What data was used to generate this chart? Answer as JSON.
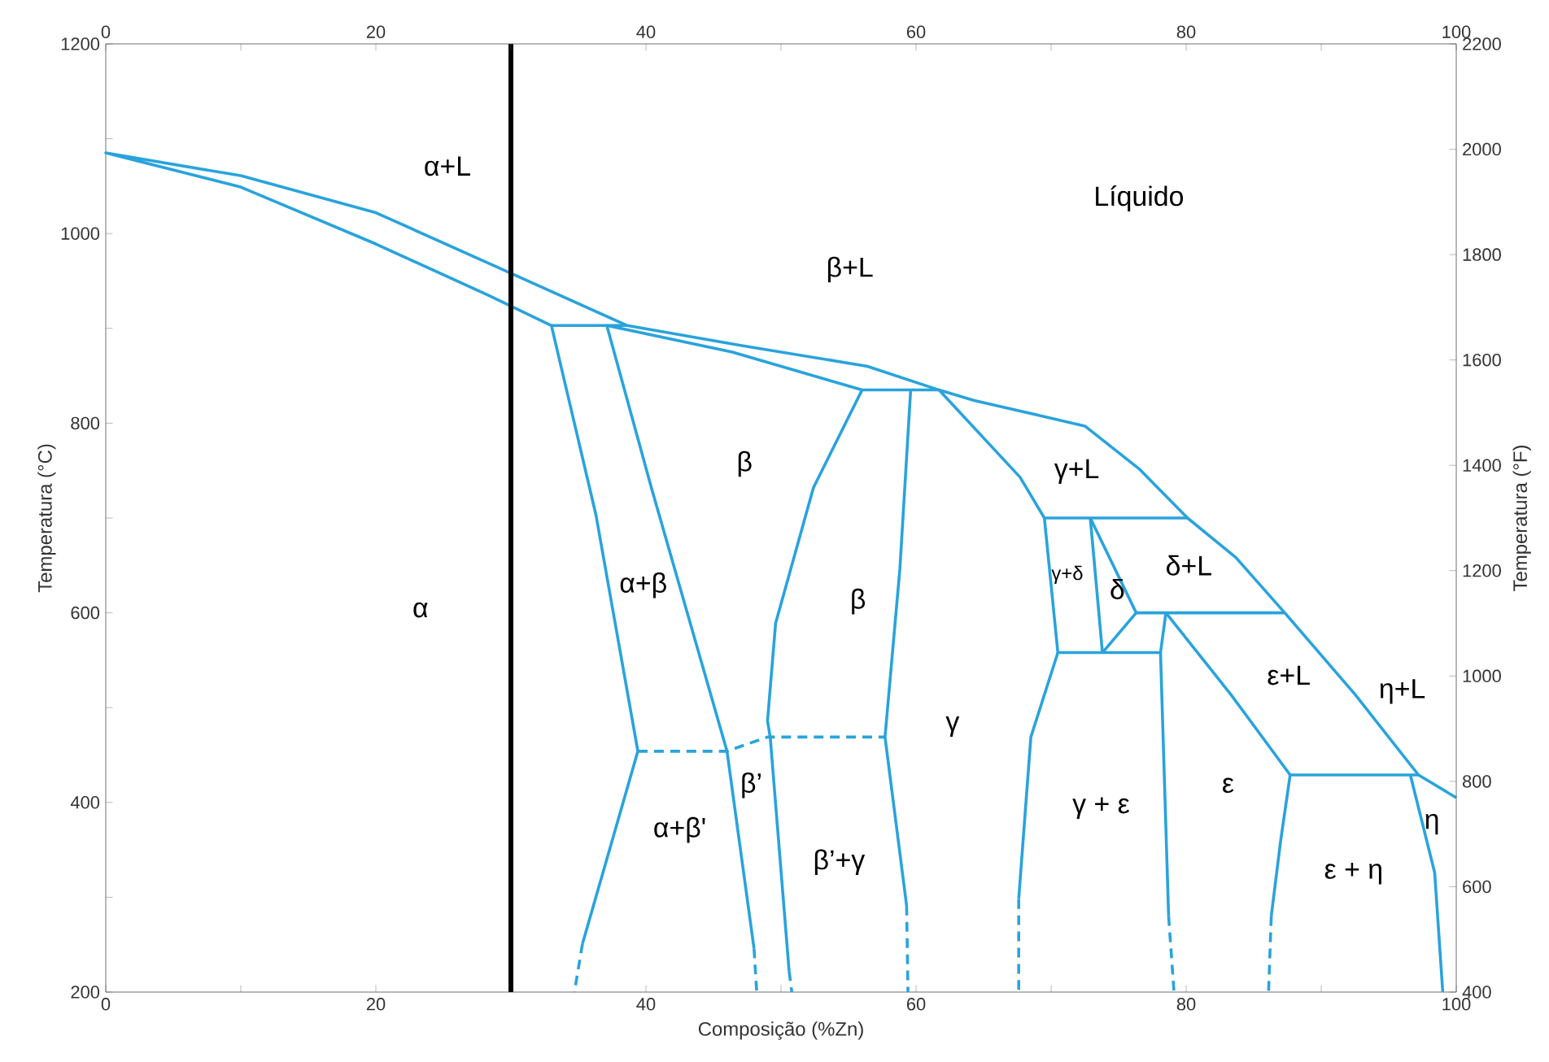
{
  "chart_data": {
    "type": "line",
    "xlabel": "Composição (%Zn)",
    "ylabel": "Temperatura (°C)",
    "y2label": "Temperatura (°F)",
    "xlim": [
      0,
      100
    ],
    "ylim": [
      200,
      1200
    ],
    "x2lim": [
      0,
      100
    ],
    "y2lim": [
      400,
      2200
    ],
    "xticks": [
      0,
      {
        "value": 10,
        "label": null
      },
      20,
      {
        "value": 30,
        "label": null
      },
      40,
      {
        "value": 50,
        "label": null
      },
      60,
      {
        "value": 70,
        "label": null
      },
      80,
      {
        "value": 90,
        "label": null
      },
      100
    ],
    "x2ticks": [
      0,
      {
        "value": 10,
        "label": null
      },
      20,
      {
        "value": 30,
        "label": null
      },
      40,
      {
        "value": 50,
        "label": null
      },
      60,
      {
        "value": 70,
        "label": null
      },
      80,
      {
        "value": 90,
        "label": null
      },
      100
    ],
    "yticks": [
      200,
      {
        "value": 300,
        "label": null
      },
      400,
      {
        "value": 500,
        "label": null
      },
      600,
      {
        "value": 700,
        "label": null
      },
      800,
      {
        "value": 900,
        "label": null
      },
      1000,
      {
        "value": 1100,
        "label": null
      },
      1200
    ],
    "y2ticks": [
      400,
      600,
      800,
      1000,
      1200,
      1400,
      1600,
      1800,
      2000,
      2200
    ],
    "grid": false,
    "marker": "none",
    "series": [
      {
        "color": "#29a3dc",
        "line_style": "solid",
        "x": [
          33.0,
          28.3,
          20,
          10,
          0,
          10,
          20,
          28.3,
          38.6,
          47,
          56.4,
          61.7,
          64.3,
          72.5,
          76.5,
          80.1,
          83.7,
          87.3,
          92.5,
          97.2,
          100
        ],
        "values": [
          903,
          935,
          989,
          1049,
          1085,
          1061,
          1022,
          969,
          903,
          882,
          860,
          835,
          824,
          797,
          752,
          700,
          658,
          600,
          514,
          429,
          405
        ]
      },
      {
        "color": "#29a3dc",
        "line_style": "solid",
        "x": [
          37.1,
          46.4,
          56.0,
          61.7,
          67.7,
          69.5,
          80.1
        ],
        "values": [
          903,
          875,
          835,
          835,
          743,
          700,
          700
        ]
      },
      {
        "color": "#29a3dc",
        "line_style": "solid",
        "x": [
          38.6,
          33.0,
          36.3,
          39.4,
          35.3
        ],
        "values": [
          903,
          903,
          703,
          454,
          251
        ]
      },
      {
        "color": "#29a3dc",
        "line_style": "solid",
        "x": [
          37.1,
          40.4,
          46.0,
          48.0
        ],
        "values": [
          903,
          732,
          454,
          246
        ]
      },
      {
        "color": "#29a3dc",
        "line_style": "dashed",
        "x": [
          39.4,
          46.0,
          49.0,
          57.7
        ],
        "values": [
          454,
          454,
          469,
          469
        ]
      },
      {
        "color": "#29a3dc",
        "line_style": "dashed",
        "x": [
          35.3,
          34.7
        ],
        "values": [
          251,
          200
        ]
      },
      {
        "color": "#29a3dc",
        "line_style": "dashed",
        "x": [
          48.0,
          48.2
        ],
        "values": [
          246,
          200
        ]
      },
      {
        "color": "#29a3dc",
        "line_style": "solid",
        "x": [
          56.0,
          52.4,
          49.6,
          49.0,
          49.2,
          50.6
        ],
        "values": [
          835,
          732,
          589,
          486,
          469,
          222
        ]
      },
      {
        "color": "#29a3dc",
        "line_style": "dashed",
        "x": [
          50.6,
          50.8
        ],
        "values": [
          222,
          200
        ]
      },
      {
        "color": "#29a3dc",
        "line_style": "solid",
        "x": [
          59.6,
          58.8,
          57.7,
          59.3
        ],
        "values": [
          835,
          646,
          469,
          291
        ]
      },
      {
        "color": "#29a3dc",
        "line_style": "dashed",
        "x": [
          59.3,
          59.4
        ],
        "values": [
          291,
          200
        ]
      },
      {
        "color": "#29a3dc",
        "line_style": "solid",
        "x": [
          69.5,
          70.5,
          78.1
        ],
        "values": [
          700,
          558,
          558
        ]
      },
      {
        "color": "#29a3dc",
        "line_style": "solid",
        "x": [
          72.9,
          73.8
        ],
        "values": [
          700,
          558
        ]
      },
      {
        "color": "#29a3dc",
        "line_style": "solid",
        "x": [
          72.9,
          76.3
        ],
        "values": [
          700,
          600
        ]
      },
      {
        "color": "#29a3dc",
        "line_style": "solid",
        "x": [
          73.8,
          76.3
        ],
        "values": [
          558,
          600
        ]
      },
      {
        "color": "#29a3dc",
        "line_style": "solid",
        "x": [
          76.3,
          87.3
        ],
        "values": [
          600,
          600
        ]
      },
      {
        "color": "#29a3dc",
        "line_style": "solid",
        "x": [
          78.5,
          78.1,
          78.7
        ],
        "values": [
          600,
          558,
          280
        ]
      },
      {
        "color": "#29a3dc",
        "line_style": "dashed",
        "x": [
          78.7,
          79.1
        ],
        "values": [
          280,
          200
        ]
      },
      {
        "color": "#29a3dc",
        "line_style": "solid",
        "x": [
          70.5,
          68.5,
          67.6
        ],
        "values": [
          558,
          469,
          298
        ]
      },
      {
        "color": "#29a3dc",
        "line_style": "dashed",
        "x": [
          67.6,
          67.6
        ],
        "values": [
          298,
          200
        ]
      },
      {
        "color": "#29a3dc",
        "line_style": "solid",
        "x": [
          78.5,
          83.3,
          87.7
        ],
        "values": [
          600,
          514,
          429
        ]
      },
      {
        "color": "#29a3dc",
        "line_style": "solid",
        "x": [
          87.7,
          97.2
        ],
        "values": [
          429,
          429
        ]
      },
      {
        "color": "#29a3dc",
        "line_style": "solid",
        "x": [
          87.7,
          87.0,
          86.3
        ],
        "values": [
          429,
          360,
          280
        ]
      },
      {
        "color": "#29a3dc",
        "line_style": "dashed",
        "x": [
          86.3,
          86.1
        ],
        "values": [
          280,
          200
        ]
      },
      {
        "color": "#29a3dc",
        "line_style": "solid",
        "x": [
          96.6,
          98.4,
          99.0
        ],
        "values": [
          429,
          326,
          200
        ]
      }
    ],
    "ref_lines": [
      {
        "axis": "x",
        "value": 30,
        "color": "#000000"
      }
    ],
    "annotations": [
      "Líquido",
      "α+L",
      "β+L",
      "β",
      "α+β",
      "α",
      "β",
      "γ",
      "α+β'",
      "β’",
      "β’+γ",
      "γ+L",
      "γ+δ",
      "δ",
      "δ+L",
      "ε+L",
      "η+L",
      "γ + ε",
      "ε",
      "η",
      "ε + η"
    ]
  }
}
